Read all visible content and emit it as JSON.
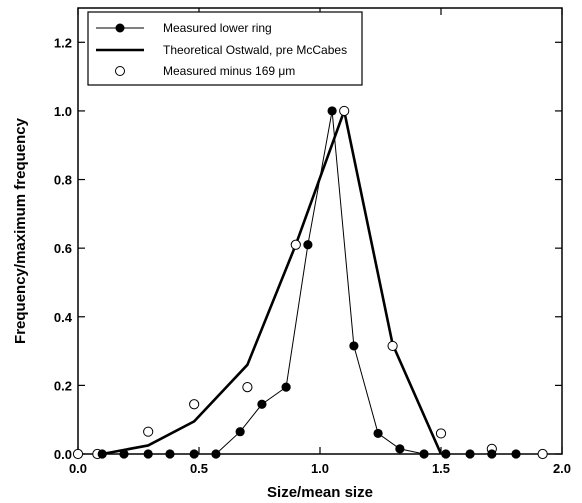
{
  "chart_data": {
    "type": "line",
    "xlabel": "Size/mean  size",
    "ylabel": "Frequency/maximum  frequency",
    "xlim": [
      0.0,
      2.0
    ],
    "ylim": [
      0.0,
      1.3
    ],
    "x_ticks": [
      "0.0",
      "0.5",
      "1.0",
      "1.5",
      "2.0"
    ],
    "y_ticks": [
      "0.0",
      "0.2",
      "0.4",
      "0.6",
      "0.8",
      "1.0",
      "1.2"
    ],
    "grid": false,
    "legend_position": "top-left",
    "series": [
      {
        "name": "Measured lower ring",
        "style": "thin-line-filled-circle",
        "x": [
          0.1,
          0.19,
          0.29,
          0.38,
          0.48,
          0.57,
          0.67,
          0.76,
          0.86,
          0.95,
          1.05,
          1.14,
          1.24,
          1.33,
          1.43,
          1.52,
          1.62,
          1.71,
          1.81
        ],
        "y": [
          0.0,
          0.0,
          0.0,
          0.0,
          0.0,
          0.0,
          0.065,
          0.145,
          0.195,
          0.61,
          1.0,
          0.315,
          0.06,
          0.015,
          0.0,
          0.0,
          0.0,
          0.0,
          0.0
        ]
      },
      {
        "name": "Theoretical Ostwald, pre McCabes",
        "style": "thick-line",
        "x": [
          0.1,
          0.29,
          0.48,
          0.7,
          0.9,
          1.1,
          1.3,
          1.5
        ],
        "y": [
          0.0,
          0.025,
          0.095,
          0.26,
          0.61,
          1.0,
          0.32,
          0.0
        ]
      },
      {
        "name": "Measured minus 169 μm",
        "style": "open-circle",
        "x": [
          0.0,
          0.08,
          0.29,
          0.48,
          0.7,
          0.9,
          1.1,
          1.3,
          1.5,
          1.71,
          1.92
        ],
        "y": [
          0.0,
          0.0,
          0.065,
          0.145,
          0.195,
          0.61,
          1.0,
          0.315,
          0.06,
          0.015,
          0.0
        ]
      }
    ]
  },
  "colors": {
    "ink": "#000000",
    "background": "#ffffff"
  }
}
